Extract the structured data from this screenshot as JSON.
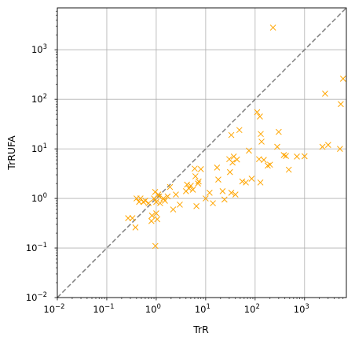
{
  "chart_data": {
    "type": "scatter",
    "xlabel": "TrR",
    "ylabel": "TrRUFA",
    "xscale": "log",
    "yscale": "log",
    "xlim": [
      0.01,
      7000
    ],
    "ylim": [
      0.01,
      7000
    ],
    "grid": true,
    "marker": "x",
    "colors": {
      "points": "#FFA500",
      "diagonal": "#808080",
      "grid": "#B0B0B0",
      "frame": "#000000"
    },
    "diagonal": {
      "style": "dashed",
      "from": [
        0.01,
        0.01
      ],
      "to": [
        7000,
        7000
      ]
    },
    "x_tick_labels": [
      {
        "base": "10",
        "exp": "−2"
      },
      {
        "base": "10",
        "exp": "−1"
      },
      {
        "base": "10",
        "exp": "0"
      },
      {
        "base": "10",
        "exp": "1"
      },
      {
        "base": "10",
        "exp": "2"
      },
      {
        "base": "10",
        "exp": "3"
      }
    ],
    "y_tick_labels": [
      {
        "base": "10",
        "exp": "−2"
      },
      {
        "base": "10",
        "exp": "−1"
      },
      {
        "base": "10",
        "exp": "0"
      },
      {
        "base": "10",
        "exp": "1"
      },
      {
        "base": "10",
        "exp": "2"
      },
      {
        "base": "10",
        "exp": "3"
      }
    ],
    "points": [
      [
        0.27,
        0.4
      ],
      [
        0.33,
        0.4
      ],
      [
        0.38,
        0.26
      ],
      [
        0.4,
        1.0
      ],
      [
        0.45,
        0.85
      ],
      [
        0.48,
        1.0
      ],
      [
        0.55,
        0.85
      ],
      [
        0.6,
        0.9
      ],
      [
        0.7,
        0.8
      ],
      [
        0.8,
        0.35
      ],
      [
        0.82,
        0.45
      ],
      [
        0.9,
        1.0
      ],
      [
        0.95,
        1.35
      ],
      [
        0.96,
        0.11
      ],
      [
        1.0,
        0.85
      ],
      [
        1.0,
        0.5
      ],
      [
        1.05,
        0.38
      ],
      [
        1.1,
        1.2
      ],
      [
        1.15,
        1.1
      ],
      [
        1.2,
        0.8
      ],
      [
        1.4,
        1.0
      ],
      [
        1.5,
        0.9
      ],
      [
        1.7,
        1.1
      ],
      [
        1.9,
        1.7
      ],
      [
        2.2,
        0.6
      ],
      [
        2.5,
        1.2
      ],
      [
        3.0,
        0.75
      ],
      [
        4.0,
        1.4
      ],
      [
        4.2,
        1.9
      ],
      [
        4.6,
        1.6
      ],
      [
        5.0,
        1.8
      ],
      [
        5.5,
        1.5
      ],
      [
        6.0,
        4.0
      ],
      [
        6.2,
        2.8
      ],
      [
        6.5,
        0.7
      ],
      [
        7.0,
        2.0
      ],
      [
        7.2,
        2.2
      ],
      [
        8.0,
        3.9
      ],
      [
        10.0,
        1.0
      ],
      [
        12.0,
        1.3
      ],
      [
        14.0,
        0.8
      ],
      [
        17.0,
        4.2
      ],
      [
        18.0,
        2.4
      ],
      [
        22.0,
        1.4
      ],
      [
        24.0,
        0.95
      ],
      [
        30.0,
        6.2
      ],
      [
        31.0,
        3.4
      ],
      [
        33.0,
        19.0
      ],
      [
        33.0,
        1.3
      ],
      [
        35.0,
        5.3
      ],
      [
        37.0,
        7.0
      ],
      [
        40.0,
        1.2
      ],
      [
        43.0,
        6.1
      ],
      [
        48.0,
        24.0
      ],
      [
        55.0,
        2.2
      ],
      [
        65.0,
        2.1
      ],
      [
        75.0,
        9.2
      ],
      [
        85.0,
        2.5
      ],
      [
        110,
        55.0
      ],
      [
        120,
        6.2
      ],
      [
        125,
        45.0
      ],
      [
        128,
        2.1
      ],
      [
        130,
        20.0
      ],
      [
        135,
        14.0
      ],
      [
        150,
        6.0
      ],
      [
        180,
        4.6
      ],
      [
        200,
        4.8
      ],
      [
        230,
        2800
      ],
      [
        280,
        11.0
      ],
      [
        300,
        22.0
      ],
      [
        380,
        7.5
      ],
      [
        420,
        7.2
      ],
      [
        480,
        3.8
      ],
      [
        700,
        7.0
      ],
      [
        1000,
        7.1
      ],
      [
        2300,
        11.0
      ],
      [
        2600,
        130
      ],
      [
        3000,
        12.0
      ],
      [
        5200,
        10.0
      ],
      [
        5400,
        80.0
      ],
      [
        6000,
        260
      ]
    ]
  }
}
